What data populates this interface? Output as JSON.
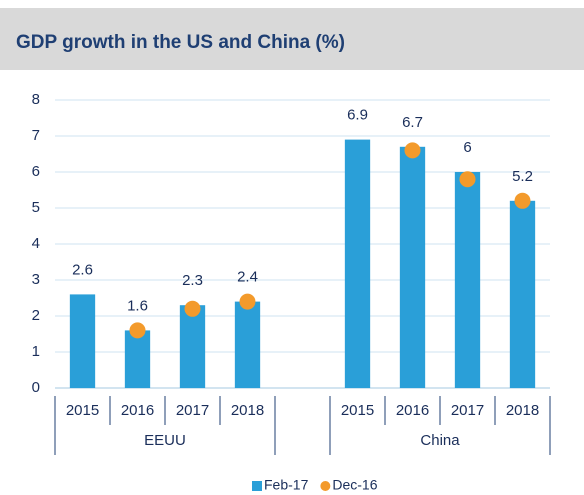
{
  "chart_data": {
    "type": "bar",
    "title": "GDP growth in the US and China (%)",
    "categories": [
      "2015",
      "2016",
      "2017",
      "2018",
      null,
      "2015",
      "2016",
      "2017",
      "2018"
    ],
    "groups": [
      "EEUU",
      "China"
    ],
    "series": [
      {
        "name": "Feb-17",
        "type": "bar",
        "color": "#2a9fd8",
        "values": [
          2.6,
          1.6,
          2.3,
          2.4,
          null,
          6.9,
          6.7,
          6,
          5.2
        ]
      },
      {
        "name": "Dec-16",
        "type": "scatter",
        "color": "#f39a2b",
        "values": [
          null,
          1.6,
          2.2,
          2.4,
          null,
          null,
          6.6,
          5.8,
          5.2
        ]
      }
    ],
    "ylim": [
      0,
      8
    ],
    "yticks": [
      0,
      1,
      2,
      3,
      4,
      5,
      6,
      7,
      8
    ],
    "grid": true,
    "legend": "bottom"
  }
}
